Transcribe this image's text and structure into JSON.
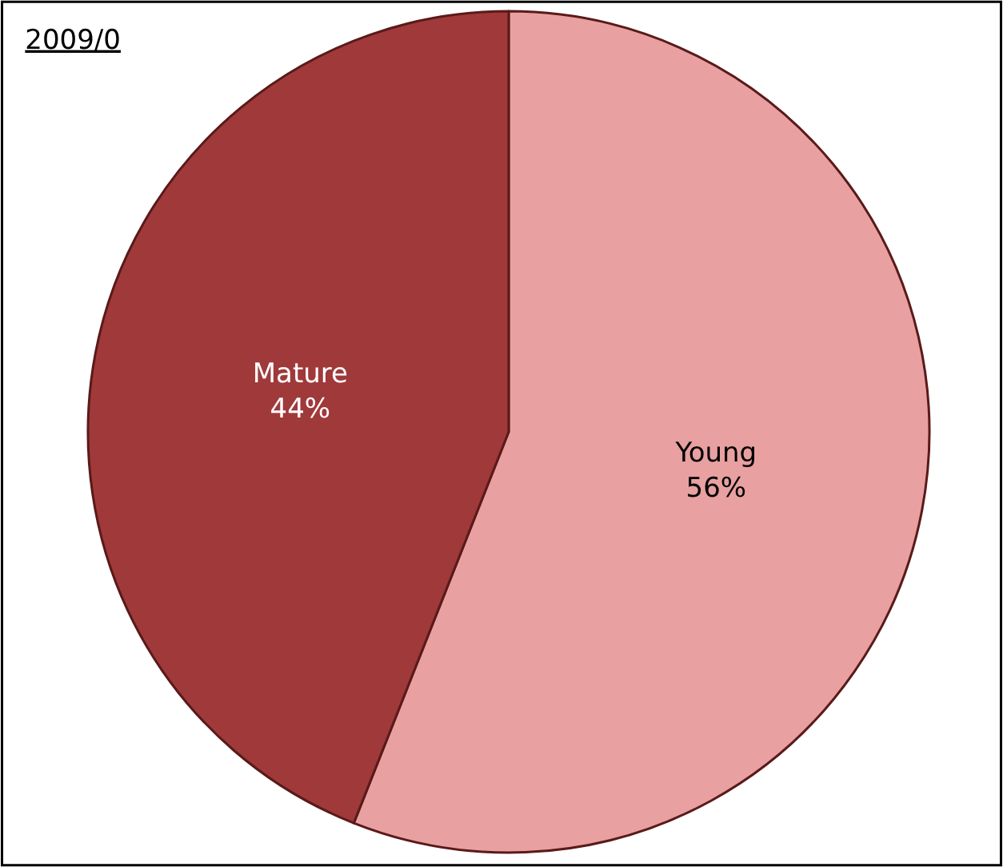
{
  "chart_data": {
    "type": "pie",
    "title": "2009/0",
    "categories": [
      "Young",
      "Mature"
    ],
    "values": [
      56,
      44
    ],
    "value_labels": [
      "56%",
      "44%"
    ],
    "colors": [
      "#e8a0a0",
      "#a0393a"
    ],
    "legend": false
  }
}
